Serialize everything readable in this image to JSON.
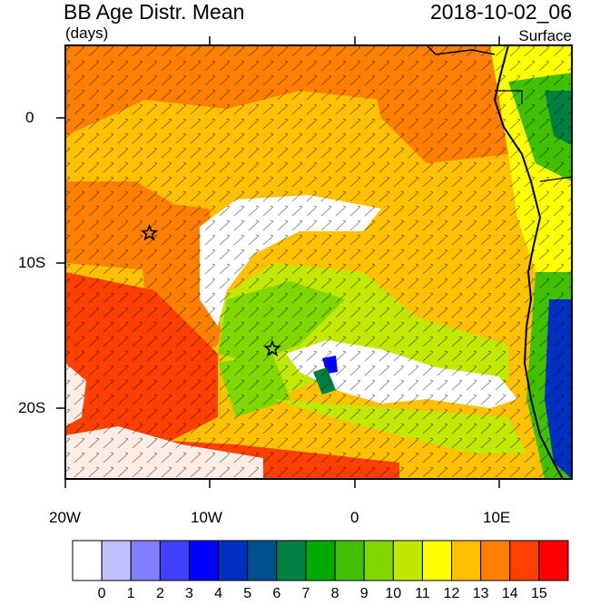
{
  "header": {
    "title": "BB Age Distr. Mean",
    "units": "(days)",
    "timestamp": "2018-10-02_06",
    "level": "Surface"
  },
  "axes": {
    "lat_ticks": [
      {
        "label": "0",
        "value": 0
      },
      {
        "label": "10S",
        "value": -10
      },
      {
        "label": "20S",
        "value": -20
      }
    ],
    "lon_ticks": [
      {
        "label": "20W",
        "value": -20
      },
      {
        "label": "10W",
        "value": -10
      },
      {
        "label": "0",
        "value": 0
      },
      {
        "label": "10E",
        "value": 10
      }
    ],
    "lon_range": [
      -20,
      15
    ],
    "lat_range": [
      -25,
      5
    ]
  },
  "markers": [
    {
      "name": "star-marker-1",
      "lon": -14.2,
      "lat": -8
    },
    {
      "name": "star-marker-2",
      "lon": -5.7,
      "lat": -16
    }
  ],
  "colorbar": {
    "labels": [
      "0",
      "1",
      "2",
      "3",
      "4",
      "5",
      "6",
      "7",
      "8",
      "9",
      "10",
      "11",
      "12",
      "13",
      "14",
      "15"
    ],
    "colors": [
      "#ffffff",
      "#c0c0ff",
      "#8080ff",
      "#4040ff",
      "#0000ff",
      "#0030c0",
      "#005090",
      "#008040",
      "#00a800",
      "#40c000",
      "#80d800",
      "#c0e800",
      "#ffff00",
      "#ffc000",
      "#ff8000",
      "#ff4000",
      "#ff0000"
    ]
  }
}
